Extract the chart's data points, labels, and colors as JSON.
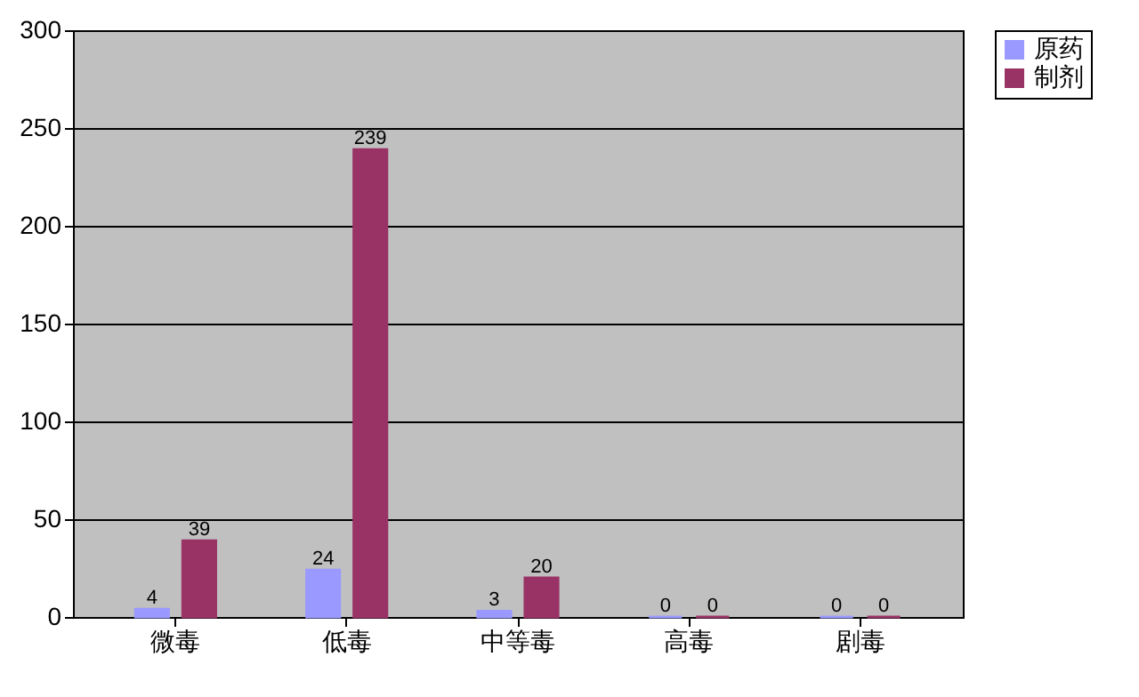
{
  "chart_data": {
    "type": "bar",
    "categories": [
      "微毒",
      "低毒",
      "中等毒",
      "高毒",
      "剧毒"
    ],
    "series": [
      {
        "name": "原药",
        "color": "#9999ff",
        "values": [
          4,
          24,
          3,
          0,
          0
        ]
      },
      {
        "name": "制剂",
        "color": "#993366",
        "values": [
          39,
          239,
          20,
          0,
          0
        ]
      }
    ],
    "ylim": [
      0,
      300
    ],
    "yticks": [
      0,
      50,
      100,
      150,
      200,
      250,
      300
    ],
    "grid": "y",
    "legend": "right",
    "data_labels": true
  }
}
